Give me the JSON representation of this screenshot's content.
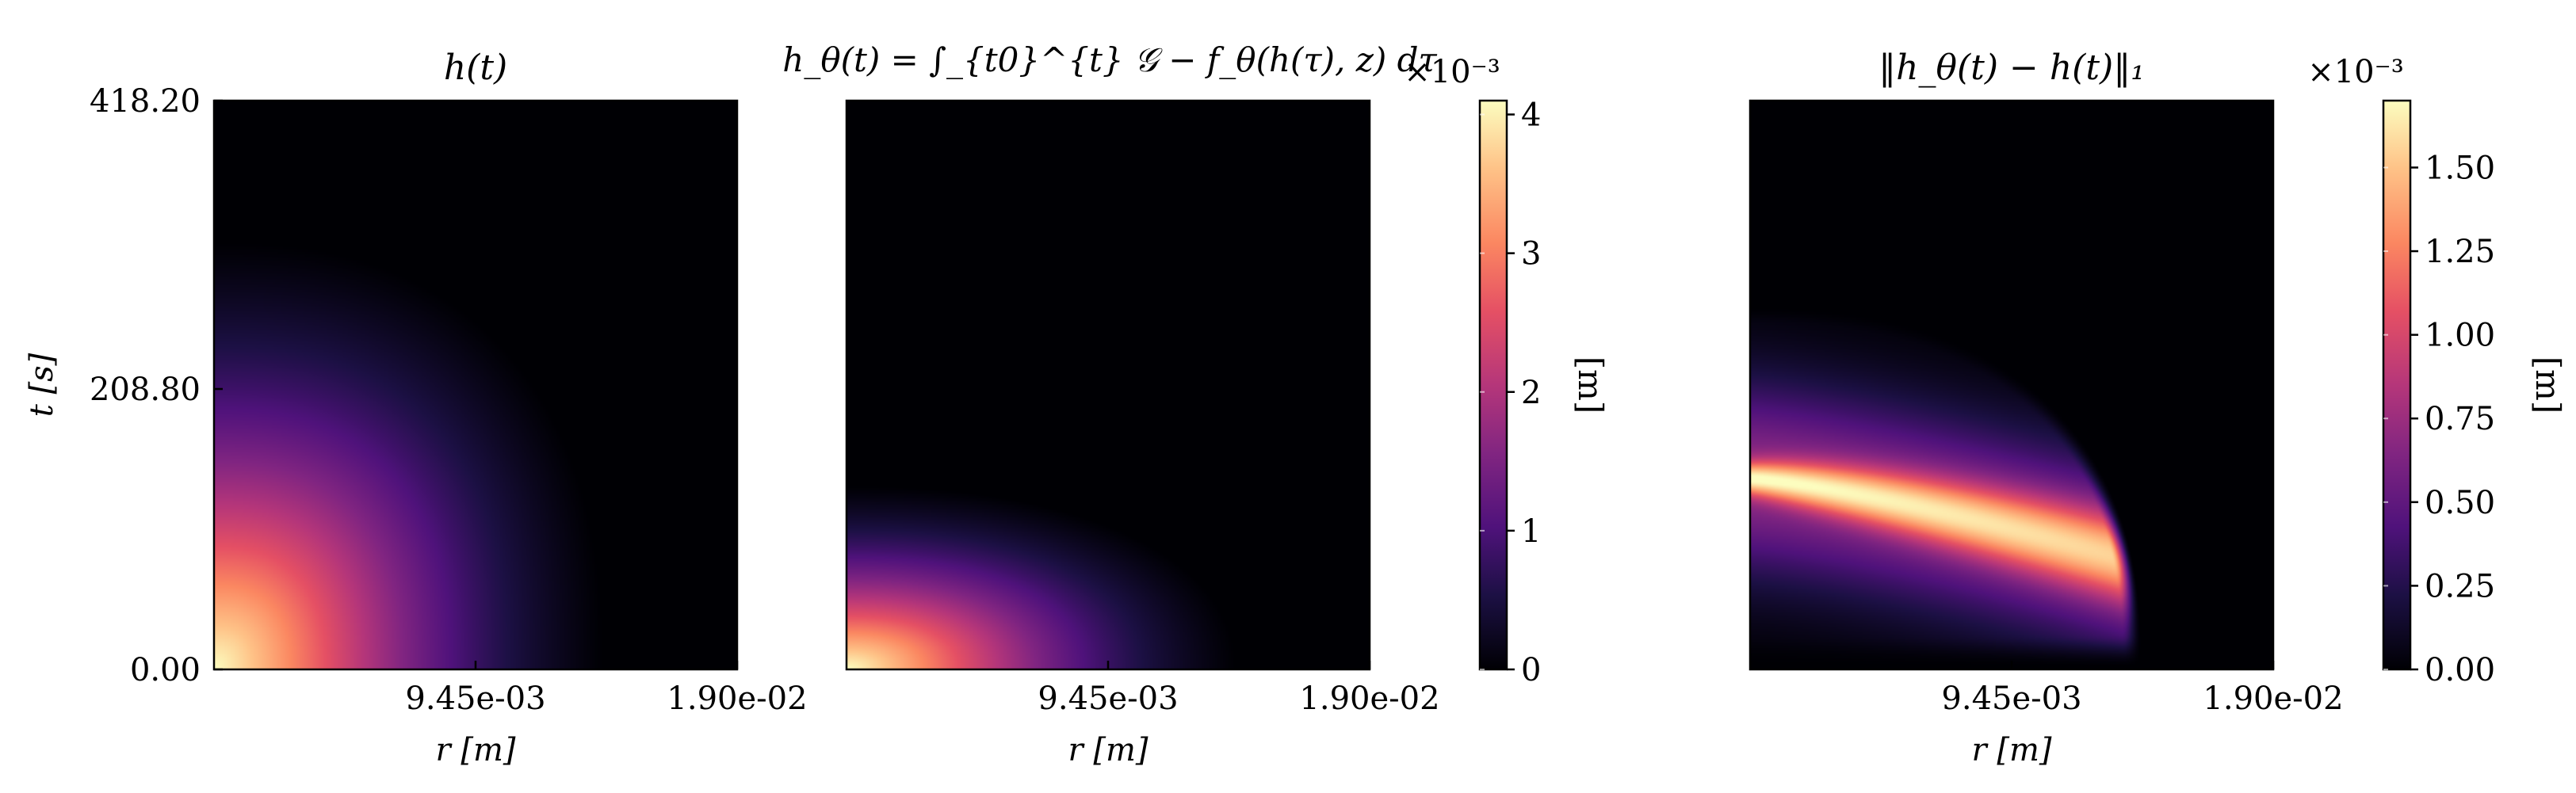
{
  "figure": {
    "units_label": "[m]"
  },
  "chart_data": [
    {
      "type": "heatmap",
      "title": "h(t)",
      "xlabel": "r [m]",
      "ylabel": "t [s]",
      "xlim": [
        0,
        0.0189
      ],
      "ylim": [
        0,
        418.2
      ],
      "x_ticks": [
        0.00945,
        0.0189
      ],
      "x_tick_labels": [
        "9.45e-03",
        "1.90e-02"
      ],
      "y_ticks": [
        0,
        208.8,
        418.2
      ],
      "y_tick_labels": [
        "0.00",
        "208.80",
        "418.20"
      ],
      "colormap": "magma",
      "value_range": [
        0,
        0.0041
      ],
      "front_r_at_t0": 0.0141,
      "front_t_at_r0": 315,
      "front_exponent": 2.4
    },
    {
      "type": "heatmap",
      "title": "h_θ(t) = ∫_{t0}^{t} 𝒢 − f_θ(h(τ), z) dτ",
      "xlabel": "r [m]",
      "ylabel": "",
      "xlim": [
        0,
        0.0189
      ],
      "ylim": [
        0,
        418.2
      ],
      "x_ticks": [
        0.00945,
        0.0189
      ],
      "x_tick_labels": [
        "9.45e-03",
        "1.90e-02"
      ],
      "colormap": "magma",
      "value_range": [
        0,
        0.0041
      ],
      "front_r_at_t0": 0.0141,
      "front_t_at_r0": 135,
      "front_exponent": 2.2,
      "colorbar": {
        "label": "[m]",
        "multiplier": "×10⁻³",
        "ticks": [
          0,
          1,
          2,
          3,
          4
        ],
        "tick_labels": [
          "0",
          "1",
          "2",
          "3",
          "4"
        ],
        "range": [
          0,
          4.1
        ]
      }
    },
    {
      "type": "heatmap",
      "title": "‖h_θ(t) − h(t)‖₁",
      "xlabel": "r [m]",
      "ylabel": "",
      "xlim": [
        0,
        0.0189
      ],
      "ylim": [
        0,
        418.2
      ],
      "x_ticks": [
        0.00945,
        0.0189
      ],
      "x_tick_labels": [
        "9.45e-03",
        "1.90e-02"
      ],
      "colormap": "magma",
      "value_range": [
        0,
        0.0017
      ],
      "peak_r": 0.0015,
      "peak_t": 140,
      "colorbar": {
        "label": "[m]",
        "multiplier": "×10⁻³",
        "ticks": [
          0,
          0.25,
          0.5,
          0.75,
          1.0,
          1.25,
          1.5
        ],
        "tick_labels": [
          "0.00",
          "0.25",
          "0.50",
          "0.75",
          "1.00",
          "1.25",
          "1.50"
        ],
        "range": [
          0,
          1.7
        ]
      }
    }
  ]
}
